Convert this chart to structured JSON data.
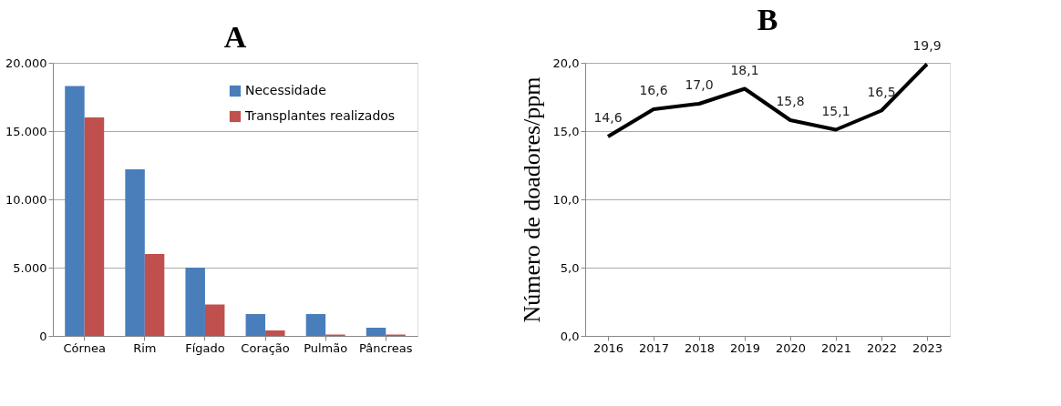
{
  "chart_data": [
    {
      "type": "bar",
      "title": "A",
      "categories": [
        "Córnea",
        "Rim",
        "Fígado",
        "Coração",
        "Pulmão",
        "Pâncreas"
      ],
      "series": [
        {
          "name": "Necessidade",
          "color": "#4a7ebb",
          "values": [
            18300,
            12200,
            5000,
            1600,
            1600,
            600
          ]
        },
        {
          "name": "Transplantes realizados",
          "color": "#c0504d",
          "values": [
            16000,
            6000,
            2300,
            400,
            100,
            100
          ]
        }
      ],
      "ylim": [
        0,
        20000
      ],
      "yticks": [
        {
          "value": 0,
          "label": "0"
        },
        {
          "value": 5000,
          "label": "5.000"
        },
        {
          "value": 10000,
          "label": "10.000"
        },
        {
          "value": 15000,
          "label": "15.000"
        },
        {
          "value": 20000,
          "label": "20.000"
        }
      ],
      "grid": "y",
      "legend": "top right"
    },
    {
      "type": "line",
      "title": "B",
      "ylabel": "Número de doadores/ppm",
      "categories": [
        "2016",
        "2017",
        "2018",
        "2019",
        "2020",
        "2021",
        "2022",
        "2023"
      ],
      "series": [
        {
          "color": "#000000",
          "values": [
            14.6,
            16.6,
            17.0,
            18.1,
            15.8,
            15.1,
            16.5,
            19.9
          ]
        }
      ],
      "value_labels": [
        "14,6",
        "16,6",
        "17,0",
        "18,1",
        "15,8",
        "15,1",
        "16,5",
        "19,9"
      ],
      "ylim": [
        0,
        20
      ],
      "yticks": [
        {
          "value": 0,
          "label": "0,0"
        },
        {
          "value": 5,
          "label": "5,0"
        },
        {
          "value": 10,
          "label": "10,0"
        },
        {
          "value": 15,
          "label": "15,0"
        },
        {
          "value": 20,
          "label": "20,0"
        }
      ],
      "grid": "y",
      "marker": "none"
    }
  ]
}
